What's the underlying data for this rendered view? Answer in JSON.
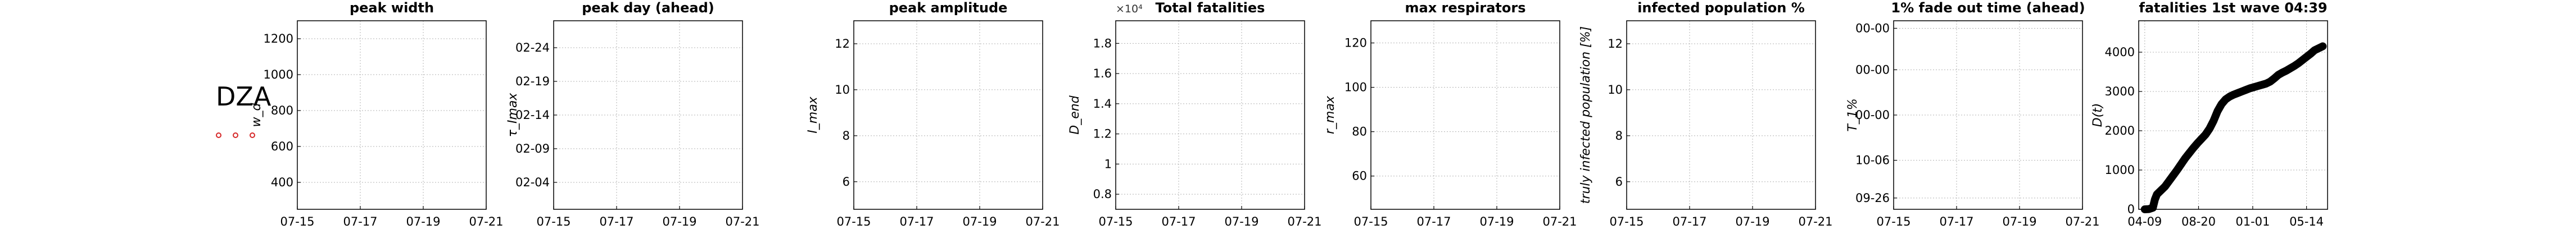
{
  "country_label": "DZA",
  "marker_color": "#d62728",
  "chart_data": [
    {
      "type": "line",
      "title": "peak width",
      "ylabel": "w_d",
      "x_ticks": [
        "07-15",
        "07-17",
        "07-19",
        "07-21"
      ],
      "y_ticks": [
        "400",
        "600",
        "800",
        "1000",
        "1200"
      ],
      "ylim": [
        250,
        1300
      ],
      "y_tick_values": [
        400,
        600,
        800,
        1000,
        1200
      ],
      "grid": true,
      "series": []
    },
    {
      "type": "line",
      "title": "peak day (ahead)",
      "ylabel": "τ_Imax",
      "x_ticks": [
        "07-15",
        "07-17",
        "07-19",
        "07-21"
      ],
      "y_ticks": [
        "02-04",
        "02-09",
        "02-14",
        "02-19",
        "02-24"
      ],
      "ylim": [
        0,
        28
      ],
      "y_tick_values": [
        4,
        9,
        14,
        19,
        24
      ],
      "grid": true,
      "series": []
    },
    {
      "type": "line",
      "title": "peak amplitude",
      "ylabel": "I_max",
      "x_ticks": [
        "07-15",
        "07-17",
        "07-19",
        "07-21"
      ],
      "y_ticks": [
        "6",
        "8",
        "10",
        "12"
      ],
      "ylim": [
        4.8,
        13
      ],
      "y_tick_values": [
        6,
        8,
        10,
        12
      ],
      "grid": true,
      "series": []
    },
    {
      "type": "line",
      "title": "Total fatalities",
      "ylabel": "D_end",
      "y_multiplier": "×10⁴",
      "x_ticks": [
        "07-15",
        "07-17",
        "07-19",
        "07-21"
      ],
      "y_ticks": [
        "0.8",
        "1",
        "1.2",
        "1.4",
        "1.6",
        "1.8"
      ],
      "ylim": [
        0.7,
        1.95
      ],
      "y_tick_values": [
        0.8,
        1.0,
        1.2,
        1.4,
        1.6,
        1.8
      ],
      "grid": true,
      "series": []
    },
    {
      "type": "line",
      "title": "max respirators",
      "ylabel": "r_max",
      "x_ticks": [
        "07-15",
        "07-17",
        "07-19",
        "07-21"
      ],
      "y_ticks": [
        "60",
        "80",
        "100",
        "120"
      ],
      "ylim": [
        45,
        130
      ],
      "y_tick_values": [
        60,
        80,
        100,
        120
      ],
      "grid": true,
      "series": []
    },
    {
      "type": "line",
      "title": "infected population %",
      "ylabel": "truly infected population [%]",
      "x_ticks": [
        "07-15",
        "07-17",
        "07-19",
        "07-21"
      ],
      "y_ticks": [
        "6",
        "8",
        "10",
        "12"
      ],
      "ylim": [
        4.8,
        13
      ],
      "y_tick_values": [
        6,
        8,
        10,
        12
      ],
      "grid": true,
      "series": []
    },
    {
      "type": "line",
      "title": "1% fade out time (ahead)",
      "ylabel": "T_1%",
      "x_ticks": [
        "07-15",
        "07-17",
        "07-19",
        "07-21"
      ],
      "y_ticks": [
        "09-26",
        "10-06",
        "00-00",
        "00-00",
        "00-00"
      ],
      "ylim": [
        0,
        10
      ],
      "y_tick_values": [
        0.6,
        2.6,
        5.0,
        7.4,
        9.6
      ],
      "grid": true,
      "series": []
    },
    {
      "type": "line",
      "title": "fatalities 1st wave 04:39",
      "ylabel": "D(t)",
      "x_ticks": [
        "04-09",
        "08-20",
        "01-01",
        "05-14"
      ],
      "y_ticks": [
        "0",
        "1000",
        "2000",
        "3000",
        "4000"
      ],
      "ylim": [
        0,
        4800
      ],
      "y_tick_values": [
        0,
        1000,
        2000,
        3000,
        4000
      ],
      "x_tick_values": [
        0,
        133,
        267,
        400
      ],
      "xlim": [
        -15,
        452
      ],
      "grid": true,
      "series": [
        {
          "color": "#000000",
          "x": [
            0,
            10,
            20,
            25,
            30,
            40,
            50,
            60,
            70,
            80,
            90,
            100,
            110,
            120,
            130,
            140,
            150,
            160,
            170,
            180,
            190,
            200,
            210,
            220,
            230,
            240,
            250,
            260,
            270,
            280,
            290,
            300,
            310,
            320,
            330,
            340,
            350,
            360,
            370,
            380,
            390,
            400,
            410,
            420,
            430,
            440
          ],
          "y": [
            0,
            5,
            40,
            250,
            380,
            480,
            580,
            720,
            860,
            1000,
            1150,
            1300,
            1430,
            1560,
            1680,
            1790,
            1900,
            2050,
            2250,
            2500,
            2680,
            2800,
            2870,
            2920,
            2960,
            3000,
            3040,
            3080,
            3110,
            3140,
            3170,
            3200,
            3250,
            3330,
            3420,
            3480,
            3530,
            3590,
            3650,
            3720,
            3800,
            3880,
            3960,
            4050,
            4100,
            4150
          ]
        }
      ]
    }
  ]
}
